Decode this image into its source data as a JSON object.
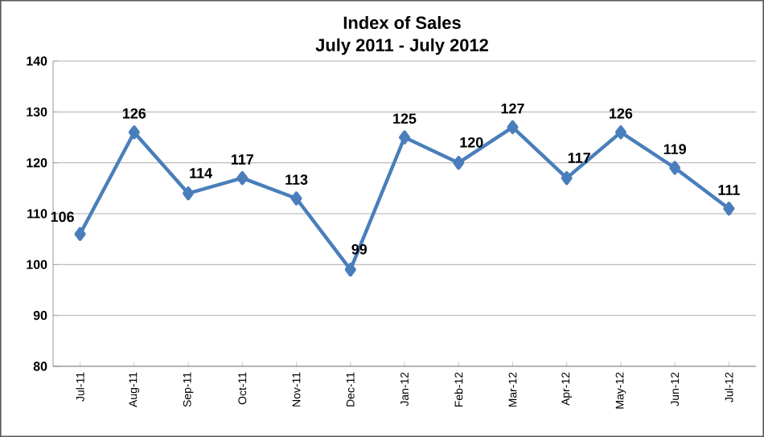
{
  "chart_data": {
    "type": "line",
    "title": "Index of Sales",
    "subtitle": "July 2011 - July 2012",
    "categories": [
      "Jul-11",
      "Aug-11",
      "Sep-11",
      "Oct-11",
      "Nov-11",
      "Dec-11",
      "Jan-12",
      "Feb-12",
      "Mar-12",
      "Apr-12",
      "May-12",
      "Jun-12",
      "Jul-12"
    ],
    "series": [
      {
        "color": "#4a7ebb",
        "values": [
          106,
          126,
          114,
          117,
          113,
          99,
          125,
          120,
          127,
          117,
          126,
          119,
          111
        ]
      }
    ],
    "ylim": [
      80,
      140
    ],
    "yticks": [
      80,
      90,
      100,
      110,
      120,
      130,
      140
    ],
    "grid": "y",
    "marker": "diamond",
    "line_style": "solid",
    "data_labels": true
  }
}
